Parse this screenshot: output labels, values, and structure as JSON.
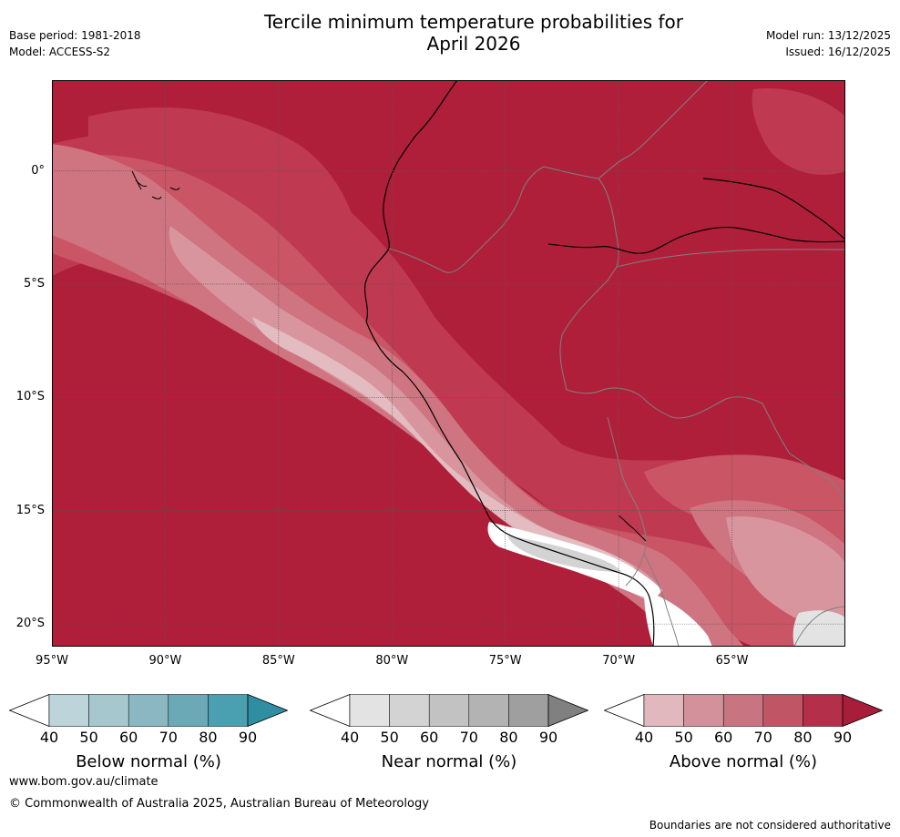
{
  "header": {
    "title_line1": "Tercile minimum temperature probabilities for",
    "title_line2": "April 2026",
    "base_period": "Base period: 1981-2018",
    "model": "Model: ACCESS-S2",
    "model_run": "Model run: 13/12/2025",
    "issued": "Issued: 16/12/2025"
  },
  "axes": {
    "lat_labels": [
      "0°",
      "5°S",
      "10°S",
      "15°S",
      "20°S"
    ],
    "lat_values": [
      0,
      -5,
      -10,
      -15,
      -20
    ],
    "lon_labels": [
      "95°W",
      "90°W",
      "85°W",
      "80°W",
      "75°W",
      "70°W",
      "65°W"
    ],
    "lon_values": [
      -95,
      -90,
      -85,
      -80,
      -75,
      -70,
      -65
    ],
    "lat_range": [
      -21,
      4
    ],
    "lon_range": [
      -95,
      -60
    ]
  },
  "colors": {
    "above": [
      "#e2b8bf",
      "#d3929b",
      "#c87581",
      "#c05566",
      "#b4304a",
      "#a81d39"
    ],
    "near": [
      "#e3e3e3",
      "#d3d3d3",
      "#c2c2c2",
      "#b3b3b3",
      "#9f9f9f",
      "#808080"
    ],
    "below": [
      "#bdd4da",
      "#a7c7cf",
      "#8bb7c2",
      "#6aa9b5",
      "#4aa0b0",
      "#2f8ea2"
    ],
    "coast": "#000000",
    "borders": "#808080",
    "grid": "#555555"
  },
  "colorbars": [
    {
      "key": "below",
      "title": "Below normal (%)",
      "ticks": [
        "40",
        "50",
        "60",
        "70",
        "80",
        "90"
      ]
    },
    {
      "key": "near",
      "title": "Near normal (%)",
      "ticks": [
        "40",
        "50",
        "60",
        "70",
        "80",
        "90"
      ]
    },
    {
      "key": "above",
      "title": "Above normal (%)",
      "ticks": [
        "40",
        "50",
        "60",
        "70",
        "80",
        "90"
      ]
    }
  ],
  "footer": {
    "website": "www.bom.gov.au/climate",
    "copyright": "© Commonwealth of Australia 2025, Australian Bureau of Meteorology",
    "disclaimer": "Boundaries are not considered authoritative"
  }
}
